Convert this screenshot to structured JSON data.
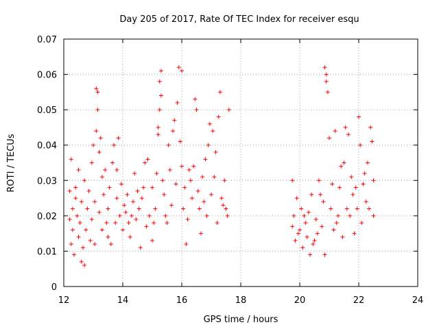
{
  "chart_data": {
    "type": "scatter",
    "title": "Day 205 of 2017, Rate Of TEC Index for receiver esqu",
    "xlabel": "GPS time / hours",
    "ylabel": "ROTI / TECUs",
    "xlim": [
      12,
      24
    ],
    "ylim": [
      0,
      0.07
    ],
    "x_ticks": [
      12,
      14,
      16,
      18,
      20,
      22,
      24
    ],
    "x_tick_labels": [
      "12",
      "14",
      "16",
      "18",
      "20",
      "22",
      "24"
    ],
    "y_ticks": [
      0,
      0.01,
      0.02,
      0.03,
      0.04,
      0.05,
      0.06,
      0.07
    ],
    "y_tick_labels": [
      "0",
      "0.01",
      "0.02",
      "0.03",
      "0.04",
      "0.05",
      "0.06",
      "0.07"
    ],
    "grid": true,
    "marker": "+",
    "color": "#ff0000",
    "series": [
      {
        "name": "ROTI",
        "note": "representative sample of the dense point cloud",
        "points": [
          [
            12.2,
            0.019
          ],
          [
            12.2,
            0.027
          ],
          [
            12.25,
            0.036
          ],
          [
            12.25,
            0.012
          ],
          [
            12.3,
            0.022
          ],
          [
            12.3,
            0.016
          ],
          [
            12.35,
            0.009
          ],
          [
            12.4,
            0.028
          ],
          [
            12.4,
            0.025
          ],
          [
            12.45,
            0.02
          ],
          [
            12.5,
            0.014
          ],
          [
            12.5,
            0.033
          ],
          [
            12.55,
            0.018
          ],
          [
            12.6,
            0.007
          ],
          [
            12.6,
            0.024
          ],
          [
            12.65,
            0.011
          ],
          [
            12.7,
            0.03
          ],
          [
            12.7,
            0.006
          ],
          [
            12.75,
            0.016
          ],
          [
            12.8,
            0.022
          ],
          [
            12.85,
            0.027
          ],
          [
            12.9,
            0.013
          ],
          [
            12.95,
            0.035
          ],
          [
            12.95,
            0.019
          ],
          [
            13.0,
            0.04
          ],
          [
            13.05,
            0.024
          ],
          [
            13.05,
            0.012
          ],
          [
            13.1,
            0.056
          ],
          [
            13.1,
            0.044
          ],
          [
            13.15,
            0.05
          ],
          [
            13.15,
            0.055
          ],
          [
            13.2,
            0.038
          ],
          [
            13.2,
            0.021
          ],
          [
            13.25,
            0.042
          ],
          [
            13.3,
            0.016
          ],
          [
            13.3,
            0.031
          ],
          [
            13.35,
            0.026
          ],
          [
            13.4,
            0.033
          ],
          [
            13.45,
            0.018
          ],
          [
            13.5,
            0.022
          ],
          [
            13.5,
            0.014
          ],
          [
            13.55,
            0.028
          ],
          [
            13.6,
            0.012
          ],
          [
            13.65,
            0.035
          ],
          [
            13.7,
            0.04
          ],
          [
            13.75,
            0.018
          ],
          [
            13.8,
            0.033
          ],
          [
            13.8,
            0.025
          ],
          [
            13.85,
            0.042
          ],
          [
            13.9,
            0.02
          ],
          [
            13.95,
            0.029
          ],
          [
            14.0,
            0.016
          ],
          [
            14.05,
            0.023
          ],
          [
            14.1,
            0.021
          ],
          [
            14.15,
            0.026
          ],
          [
            14.2,
            0.018
          ],
          [
            14.25,
            0.014
          ],
          [
            14.3,
            0.02
          ],
          [
            14.35,
            0.024
          ],
          [
            14.4,
            0.032
          ],
          [
            14.45,
            0.019
          ],
          [
            14.5,
            0.027
          ],
          [
            14.55,
            0.022
          ],
          [
            14.6,
            0.011
          ],
          [
            14.65,
            0.025
          ],
          [
            14.7,
            0.028
          ],
          [
            14.75,
            0.035
          ],
          [
            14.8,
            0.017
          ],
          [
            14.85,
            0.036
          ],
          [
            14.9,
            0.02
          ],
          [
            15.0,
            0.028
          ],
          [
            15.0,
            0.013
          ],
          [
            15.05,
            0.018
          ],
          [
            15.1,
            0.022
          ],
          [
            15.15,
            0.032
          ],
          [
            15.2,
            0.045
          ],
          [
            15.2,
            0.043
          ],
          [
            15.25,
            0.05
          ],
          [
            15.25,
            0.058
          ],
          [
            15.3,
            0.061
          ],
          [
            15.3,
            0.054
          ],
          [
            15.35,
            0.03
          ],
          [
            15.4,
            0.026
          ],
          [
            15.45,
            0.02
          ],
          [
            15.5,
            0.018
          ],
          [
            15.55,
            0.04
          ],
          [
            15.6,
            0.033
          ],
          [
            15.65,
            0.023
          ],
          [
            15.7,
            0.044
          ],
          [
            15.75,
            0.047
          ],
          [
            15.8,
            0.029
          ],
          [
            15.85,
            0.052
          ],
          [
            15.9,
            0.062
          ],
          [
            15.95,
            0.041
          ],
          [
            16.0,
            0.061
          ],
          [
            16.0,
            0.034
          ],
          [
            16.05,
            0.022
          ],
          [
            16.1,
            0.028
          ],
          [
            16.15,
            0.012
          ],
          [
            16.2,
            0.019
          ],
          [
            16.25,
            0.033
          ],
          [
            16.3,
            0.03
          ],
          [
            16.35,
            0.025
          ],
          [
            16.4,
            0.034
          ],
          [
            16.45,
            0.053
          ],
          [
            16.5,
            0.05
          ],
          [
            16.55,
            0.027
          ],
          [
            16.6,
            0.022
          ],
          [
            16.65,
            0.015
          ],
          [
            16.7,
            0.031
          ],
          [
            16.75,
            0.024
          ],
          [
            16.8,
            0.036
          ],
          [
            16.85,
            0.02
          ],
          [
            16.9,
            0.04
          ],
          [
            16.95,
            0.046
          ],
          [
            17.0,
            0.026
          ],
          [
            17.05,
            0.044
          ],
          [
            17.1,
            0.031
          ],
          [
            17.15,
            0.038
          ],
          [
            17.2,
            0.018
          ],
          [
            17.25,
            0.048
          ],
          [
            17.3,
            0.055
          ],
          [
            17.35,
            0.025
          ],
          [
            17.4,
            0.023
          ],
          [
            17.45,
            0.03
          ],
          [
            17.5,
            0.022
          ],
          [
            17.55,
            0.02
          ],
          [
            17.6,
            0.05
          ],
          [
            19.75,
            0.03
          ],
          [
            19.75,
            0.017
          ],
          [
            19.8,
            0.02
          ],
          [
            19.85,
            0.013
          ],
          [
            19.9,
            0.025
          ],
          [
            19.95,
            0.015
          ],
          [
            20.0,
            0.016
          ],
          [
            20.05,
            0.022
          ],
          [
            20.1,
            0.011
          ],
          [
            20.15,
            0.02
          ],
          [
            20.2,
            0.018
          ],
          [
            20.25,
            0.014
          ],
          [
            20.3,
            0.021
          ],
          [
            20.35,
            0.009
          ],
          [
            20.4,
            0.026
          ],
          [
            20.45,
            0.012
          ],
          [
            20.5,
            0.013
          ],
          [
            20.55,
            0.019
          ],
          [
            20.6,
            0.015
          ],
          [
            20.65,
            0.03
          ],
          [
            20.7,
            0.026
          ],
          [
            20.75,
            0.017
          ],
          [
            20.8,
            0.024
          ],
          [
            20.85,
            0.062
          ],
          [
            20.85,
            0.009
          ],
          [
            20.9,
            0.06
          ],
          [
            20.9,
            0.058
          ],
          [
            20.95,
            0.055
          ],
          [
            21.0,
            0.042
          ],
          [
            21.05,
            0.022
          ],
          [
            21.1,
            0.029
          ],
          [
            21.15,
            0.016
          ],
          [
            21.2,
            0.044
          ],
          [
            21.25,
            0.018
          ],
          [
            21.3,
            0.02
          ],
          [
            21.35,
            0.028
          ],
          [
            21.4,
            0.034
          ],
          [
            21.45,
            0.014
          ],
          [
            21.5,
            0.035
          ],
          [
            21.55,
            0.045
          ],
          [
            21.6,
            0.022
          ],
          [
            21.65,
            0.043
          ],
          [
            21.7,
            0.02
          ],
          [
            21.75,
            0.031
          ],
          [
            21.8,
            0.026
          ],
          [
            21.85,
            0.015
          ],
          [
            21.9,
            0.028
          ],
          [
            21.95,
            0.022
          ],
          [
            22.0,
            0.048
          ],
          [
            22.05,
            0.04
          ],
          [
            22.1,
            0.018
          ],
          [
            22.15,
            0.029
          ],
          [
            22.2,
            0.032
          ],
          [
            22.25,
            0.024
          ],
          [
            22.3,
            0.035
          ],
          [
            22.35,
            0.022
          ],
          [
            22.4,
            0.045
          ],
          [
            22.45,
            0.041
          ],
          [
            22.5,
            0.02
          ],
          [
            22.5,
            0.03
          ]
        ]
      }
    ]
  }
}
